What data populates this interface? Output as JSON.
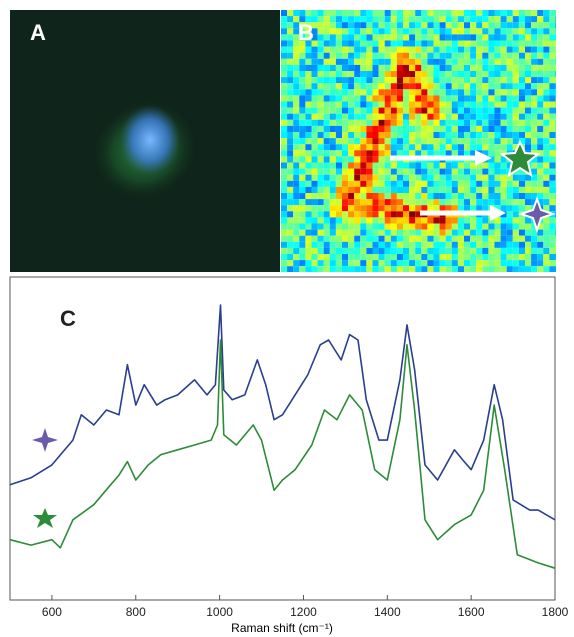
{
  "chart_data": {
    "type": "line",
    "panels": [
      "A",
      "B",
      "C"
    ],
    "xlabel": "Raman shift (cm⁻¹)",
    "xlim": [
      500,
      1800
    ],
    "xticks": [
      600,
      800,
      1000,
      1200,
      1400,
      1600,
      1800
    ],
    "ylim": [
      0,
      6
    ],
    "series": [
      {
        "color": "#2a3f8f",
        "x": [
          500,
          550,
          600,
          650,
          670,
          700,
          730,
          760,
          780,
          800,
          820,
          850,
          870,
          900,
          940,
          970,
          990,
          1002,
          1010,
          1030,
          1060,
          1090,
          1110,
          1130,
          1150,
          1180,
          1210,
          1240,
          1260,
          1290,
          1310,
          1330,
          1350,
          1380,
          1400,
          1430,
          1447,
          1465,
          1490,
          1520,
          1560,
          1580,
          1600,
          1630,
          1655,
          1675,
          1700,
          1740,
          1760,
          1800
        ],
        "values": [
          2.14,
          2.27,
          2.51,
          2.97,
          3.44,
          3.25,
          3.53,
          3.44,
          4.37,
          3.62,
          4.0,
          3.62,
          3.72,
          3.81,
          4.09,
          3.81,
          4.0,
          5.48,
          3.9,
          3.72,
          3.81,
          4.46,
          4.0,
          3.35,
          3.44,
          3.81,
          4.18,
          4.74,
          4.83,
          4.46,
          4.93,
          4.83,
          3.72,
          2.97,
          2.97,
          4.09,
          5.11,
          4.28,
          2.51,
          2.23,
          2.79,
          2.6,
          2.42,
          2.97,
          4.0,
          3.35,
          1.86,
          1.67,
          1.67,
          1.49
        ]
      },
      {
        "color": "#2e8b3a",
        "x": [
          500,
          550,
          600,
          620,
          650,
          700,
          740,
          760,
          780,
          800,
          830,
          860,
          900,
          940,
          980,
          995,
          1002,
          1010,
          1040,
          1080,
          1100,
          1130,
          1150,
          1180,
          1220,
          1250,
          1280,
          1310,
          1340,
          1370,
          1400,
          1430,
          1447,
          1465,
          1490,
          1520,
          1560,
          1600,
          1630,
          1655,
          1680,
          1710,
          1760,
          1800
        ],
        "values": [
          1.12,
          1.02,
          1.12,
          0.97,
          1.49,
          1.77,
          2.14,
          2.32,
          2.57,
          2.23,
          2.51,
          2.7,
          2.79,
          2.88,
          2.97,
          3.25,
          4.83,
          3.07,
          2.88,
          3.25,
          2.97,
          2.04,
          2.23,
          2.42,
          2.88,
          3.53,
          3.35,
          3.81,
          3.53,
          2.42,
          2.23,
          3.35,
          4.74,
          3.53,
          1.49,
          1.12,
          1.4,
          1.58,
          2.04,
          3.62,
          2.42,
          0.84,
          0.69,
          0.59
        ]
      }
    ]
  }
}
